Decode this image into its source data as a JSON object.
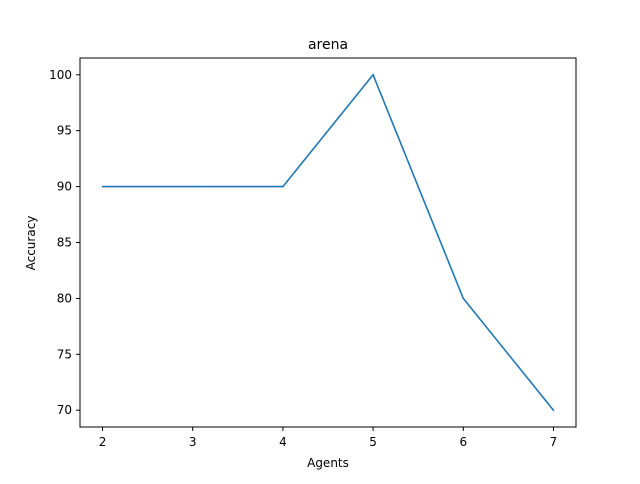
{
  "chart_data": {
    "type": "line",
    "title": "arena",
    "xlabel": "Agents",
    "ylabel": "Accuracy",
    "x": [
      2,
      3,
      4,
      5,
      6,
      7
    ],
    "series": [
      {
        "values": [
          90,
          90,
          90,
          100,
          80,
          70
        ],
        "color": "#1f77b4"
      }
    ],
    "xticks": [
      "2",
      "3",
      "4",
      "5",
      "6",
      "7"
    ],
    "yticks": [
      "70",
      "75",
      "80",
      "85",
      "90",
      "95",
      "100"
    ],
    "xlim": [
      1.75,
      7.25
    ],
    "ylim": [
      68.5,
      101.5
    ],
    "grid": false,
    "legend": "none"
  }
}
